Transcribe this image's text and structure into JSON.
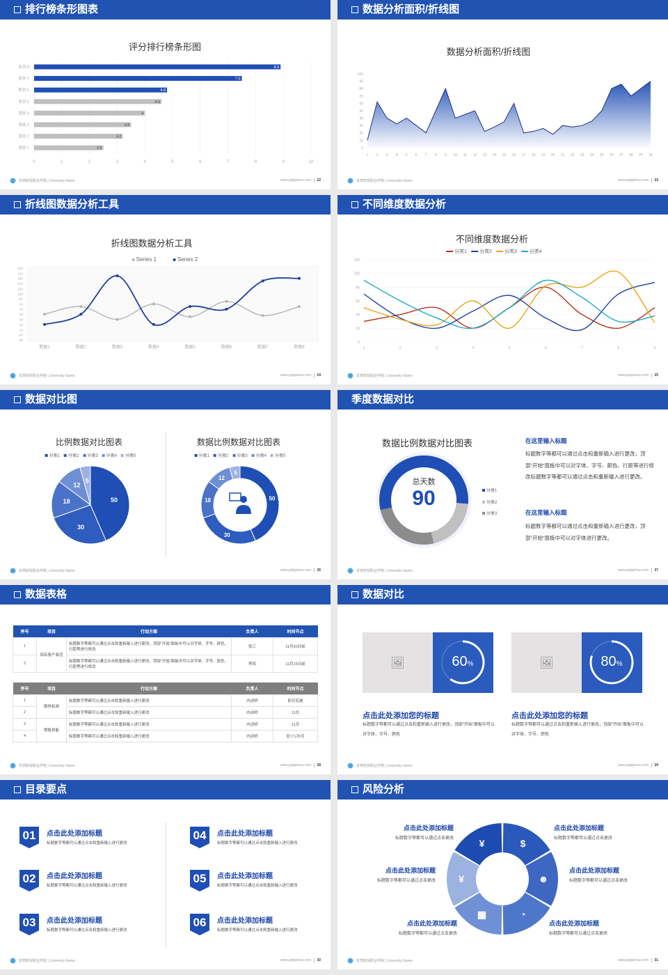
{
  "footer": {
    "school": "甘肃财贸职业学院 | University Name",
    "site": "www.pptgenius.com"
  },
  "colors": {
    "header": "#2153b3",
    "accent": "#1f4eb4",
    "title_text": "#1e48a8"
  },
  "slides": [
    {
      "header": "排行榜条形图表",
      "page": "22"
    },
    {
      "header": "数据分析面积/折线图",
      "page": "23"
    },
    {
      "header": "折线图数据分析工具",
      "page": "24"
    },
    {
      "header": "不同维度数据分析",
      "page": "25"
    },
    {
      "header": "数据对比图",
      "page": "26"
    },
    {
      "header": "季度数据对比",
      "page": "27",
      "blocks": [
        {
          "title": "在这里输入标题",
          "text": "标题数字等都可以通过点击和重新输入进行更改，顶部“开始”面板中可以对字体、字号、颜色、行距等进行修改标题数字等都可以通过点击和重新输入进行更改。"
        },
        {
          "title": "在这里输入标题",
          "text": "标题数字等都可以通过点击和重新输入进行更改，顶部“开始”面板中可以对字体进行更改。"
        }
      ]
    },
    {
      "header": "数据表格",
      "page": "28",
      "table1": {
        "headers": [
          "序号",
          "项目",
          "行动方案",
          "负责人",
          "时间节点"
        ],
        "rows": [
          {
            "no": "1",
            "item": "保有客户激活",
            "plan": "标题数字等都可以通过点击和重新输入进行更改，顶部“开始”面板中可以对字体、字号、颜色、行距等进行修改",
            "owner": "张三",
            "time": "11月30日前"
          },
          {
            "no": "2",
            "item": "保有客户激活",
            "plan": "标题数字等都可以通过点击和重新输入进行更改，顶部“开始”面板中可以对字体、字号、颜色、行距等进行修改",
            "owner": "李四",
            "time": "11月15日前"
          }
        ]
      },
      "table2": {
        "headers": [
          "序号",
          "项目",
          "行动方案",
          "负责人",
          "时间节点"
        ],
        "rows": [
          {
            "no": "1",
            "item": "服务标准",
            "plan": "标题数字等都可以通过点击和重新输入进行更改",
            "owner": "内训师",
            "time": "即日实施"
          },
          {
            "no": "2",
            "item": "服务标准",
            "plan": "标题数字等都可以通过点击和重新输入进行更改",
            "owner": "内训师",
            "time": "11月"
          },
          {
            "no": "3",
            "item": "销售技能",
            "plan": "标题数字等都可以通过点击和重新输入进行更改",
            "owner": "内训师",
            "time": "11月"
          },
          {
            "no": "4",
            "item": "销售技能",
            "plan": "标题数字等都可以通过点击和重新输入进行更改",
            "owner": "内训师",
            "time": "至少1次/月"
          }
        ]
      }
    },
    {
      "header": "数据对比",
      "page": "29",
      "cards": [
        {
          "percent": 60,
          "value": "60",
          "unit": "%",
          "image_icon": "add-image-icon",
          "title": "点击此处添加您的标题",
          "desc": "标题数字等都可以通过点击和重新输入进行更改，顶部“开始”面板中可以对字体、字号、颜色"
        },
        {
          "percent": 80,
          "value": "80",
          "unit": "%",
          "image_icon": "add-image-icon",
          "title": "点击此处添加您的标题",
          "desc": "标题数字等都可以通过点击和重新输入进行更改，顶部“开始”面板中可以对字体、字号、颜色"
        }
      ]
    },
    {
      "header": "目录要点",
      "page": "30",
      "items": [
        {
          "num": "01",
          "title": "点击此处添加标题",
          "desc": "标题数字等都可以通过点击和重新输入进行更改"
        },
        {
          "num": "02",
          "title": "点击此处添加标题",
          "desc": "标题数字等都可以通过点击和重新输入进行更改"
        },
        {
          "num": "03",
          "title": "点击此处添加标题",
          "desc": "标题数字等都可以通过点击和重新输入进行更改"
        },
        {
          "num": "04",
          "title": "点击此处添加标题",
          "desc": "标题数字等都可以通过点击和重新输入进行更改"
        },
        {
          "num": "05",
          "title": "点击此处添加标题",
          "desc": "标题数字等都可以通过点击和重新输入进行更改"
        },
        {
          "num": "06",
          "title": "点击此处添加标题",
          "desc": "标题数字等都可以通过点击和重新输入进行更改"
        }
      ]
    },
    {
      "header": "风险分析",
      "page": "31",
      "items": [
        {
          "title": "点击此处添加标题",
          "desc": "标题数字等都可以通过点击更改",
          "icon": "money-bag-icon",
          "glyph": "¥"
        },
        {
          "title": "点击此处添加标题",
          "desc": "标题数字等都可以通过点击更改",
          "icon": "coins-icon",
          "glyph": "$"
        },
        {
          "title": "点击此处添加标题",
          "desc": "标题数字等都可以通过点击更改",
          "icon": "users-icon",
          "glyph": "☻"
        },
        {
          "title": "点击此处添加标题",
          "desc": "标题数字等都可以通过点击更改",
          "icon": "pie-chart-icon",
          "glyph": "◔"
        },
        {
          "title": "点击此处添加标题",
          "desc": "标题数字等都可以通过点击更改",
          "icon": "building-icon",
          "glyph": "▦"
        },
        {
          "title": "点击此处添加标题",
          "desc": "标题数字等都可以通过点击更改",
          "icon": "yen-hand-icon",
          "glyph": "¥"
        }
      ],
      "colors": [
        "#1d4bb0",
        "#2a58bb",
        "#3d67c2",
        "#4f77c9",
        "#6f90d4",
        "#9cb2e0"
      ]
    }
  ],
  "chart_data": [
    {
      "type": "bar",
      "orientation": "horizontal",
      "title": "评分排行榜条形图",
      "categories": [
        "类别 1",
        "类别 2",
        "类别 3",
        "类别 4",
        "系列 5",
        "系列 6",
        "系列 7",
        "系列 8"
      ],
      "values": [
        2.5,
        3.2,
        3.5,
        4,
        4.6,
        4.8,
        7.5,
        8.9
      ],
      "value_labels": [
        "2.5",
        "3.2",
        "3.5",
        "4",
        "4.6",
        "4.8",
        "7.5",
        "8.9"
      ],
      "xlim": [
        0,
        10
      ],
      "xticks": [
        "0",
        "1",
        "2",
        "3",
        "4",
        "5",
        "6",
        "7",
        "8",
        "9",
        "10"
      ],
      "grid": true,
      "base_color": "#bfbfbf",
      "highlight_color": "#1f4eb4",
      "highlight_categories": [
        "系列 6",
        "系列 7",
        "系列 8"
      ]
    },
    {
      "type": "area",
      "title": "数据分析面积/折线图",
      "x": [
        "1",
        "2",
        "3",
        "4",
        "5",
        "6",
        "7",
        "8",
        "9",
        "10",
        "11",
        "12",
        "13",
        "14",
        "15",
        "16",
        "17",
        "18",
        "19",
        "20",
        "21",
        "22",
        "23",
        "24",
        "25",
        "26",
        "27",
        "28",
        "29",
        "30"
      ],
      "values": [
        10,
        62,
        40,
        32,
        40,
        30,
        20,
        50,
        80,
        40,
        45,
        50,
        22,
        28,
        35,
        60,
        20,
        22,
        26,
        18,
        30,
        28,
        30,
        36,
        50,
        80,
        86,
        70,
        80,
        90
      ],
      "ylim": [
        0,
        100
      ],
      "yticks": [
        "0",
        "10",
        "20",
        "30",
        "40",
        "50",
        "60",
        "70",
        "80",
        "90",
        "100"
      ],
      "color": "#1f4eb4"
    },
    {
      "type": "line",
      "title": "折线图数据分析工具",
      "smooth": true,
      "legend": "top",
      "categories": [
        "数据1",
        "数据2",
        "数据3",
        "数据4",
        "数据5",
        "数据6",
        "数据7",
        "数据8"
      ],
      "series": [
        {
          "name": "Series 1",
          "values": [
            50,
            80,
            30,
            90,
            40,
            100,
            45,
            80
          ],
          "color": "#b4b4b4"
        },
        {
          "name": "Series 2",
          "values": [
            10,
            50,
            200,
            10,
            80,
            70,
            180,
            190
          ],
          "color": "#1e3f9e"
        }
      ],
      "ylim": [
        -50,
        230
      ],
      "yticks": [
        "-50",
        "-30",
        "-10",
        "10",
        "30",
        "50",
        "70",
        "90",
        "110",
        "130",
        "150",
        "170",
        "190",
        "210",
        "230"
      ]
    },
    {
      "type": "line",
      "title": "不同维度数据分析",
      "smooth": true,
      "legend": "top",
      "categories": [
        "1",
        "2",
        "3",
        "4",
        "5",
        "6",
        "7",
        "8",
        "9"
      ],
      "series": [
        {
          "name": "分类1",
          "values": [
            30,
            40,
            50,
            20,
            50,
            80,
            40,
            20,
            50
          ],
          "color": "#b7321c"
        },
        {
          "name": "分类2",
          "values": [
            70,
            35,
            20,
            45,
            68,
            35,
            18,
            70,
            87
          ],
          "color": "#1e3fa0"
        },
        {
          "name": "分类3",
          "values": [
            50,
            33,
            25,
            60,
            20,
            82,
            80,
            102,
            28
          ],
          "color": "#e8a317"
        },
        {
          "name": "分类4",
          "values": [
            90,
            60,
            35,
            20,
            50,
            90,
            65,
            30,
            38
          ],
          "color": "#1ea8c8"
        }
      ],
      "ylim": [
        0,
        120
      ],
      "yticks": [
        "0",
        "20",
        "40",
        "60",
        "80",
        "100",
        "120"
      ],
      "grid": true
    },
    {
      "type": "pie",
      "title": "比例数据对比图表",
      "categories": [
        "分类1",
        "分类2",
        "分类3",
        "分类4",
        "分类5"
      ],
      "values": [
        50,
        30,
        18,
        12,
        5
      ],
      "labels": [
        "50",
        "30",
        "18",
        "12",
        "5"
      ],
      "colors": [
        "#1f4eb4",
        "#2e5cbf",
        "#4a72c8",
        "#6e8fd3",
        "#9db2e0"
      ],
      "legend": "top"
    },
    {
      "type": "pie",
      "variant": "donut",
      "title": "数据比例数据对比图表",
      "categories": [
        "分类1",
        "分类2",
        "分类3",
        "分类4",
        "分类5"
      ],
      "values": [
        50,
        30,
        18,
        12,
        5
      ],
      "labels": [
        "50",
        "30",
        "18",
        "12",
        "5"
      ],
      "colors": [
        "#1f4eb4",
        "#2e5cbf",
        "#4a72c8",
        "#6e8fd3",
        "#9db2e0"
      ],
      "legend": "top",
      "center_icon": "customer-service-icon"
    },
    {
      "type": "pie",
      "variant": "donut",
      "title": "数据比例数据对比图表",
      "categories": [
        "分类1",
        "分类2",
        "分类3"
      ],
      "values": [
        55,
        20,
        25
      ],
      "colors": [
        "#1f4eb4",
        "#c0c0c0",
        "#8c8c8c"
      ],
      "legend": "right",
      "center_label": "总天数",
      "center_value": "90"
    }
  ]
}
